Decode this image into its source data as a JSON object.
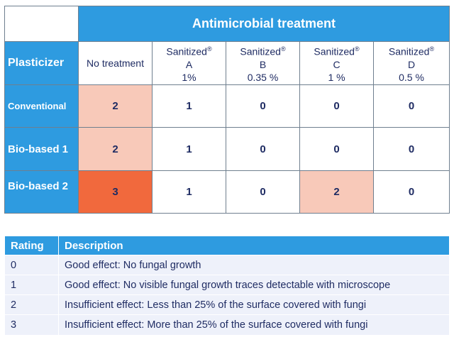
{
  "matrix": {
    "header_group": "Antimicrobial treatment",
    "row_header_title": "Plasticizer",
    "columns": [
      {
        "l1": "No treatment",
        "l2": "",
        "l3": "",
        "reg": ""
      },
      {
        "l1": "Sanitized",
        "reg": "®",
        "l2": "A",
        "l3": "1%"
      },
      {
        "l1": "Sanitized",
        "reg": "®",
        "l2": "B",
        "l3": "0.35 %"
      },
      {
        "l1": "Sanitized",
        "reg": "®",
        "l2": "C",
        "l3": "1 %"
      },
      {
        "l1": "Sanitized",
        "reg": "®",
        "l2": "D",
        "l3": "0.5 %"
      }
    ],
    "rows": [
      {
        "label": "Conventional",
        "values": [
          "2",
          "1",
          "0",
          "0",
          "0"
        ]
      },
      {
        "label": "Bio-based 1",
        "values": [
          "2",
          "1",
          "0",
          "0",
          "0"
        ]
      },
      {
        "label": "Bio-based 2",
        "values": [
          "3",
          "1",
          "0",
          "2",
          "0"
        ]
      }
    ],
    "highlight_colors": {
      "rating_2": "#f8c9b9",
      "rating_3": "#f1693d"
    },
    "header_color": "#2e9be0"
  },
  "legend": {
    "headers": [
      "Rating",
      "Description"
    ],
    "rows": [
      {
        "rating": "0",
        "description": "Good effect: No fungal growth"
      },
      {
        "rating": "1",
        "description": "Good effect: No visible fungal growth traces detectable with microscope"
      },
      {
        "rating": "2",
        "description": "Insufficient effect: Less than 25% of the surface covered with fungi"
      },
      {
        "rating": "3",
        "description": "Insufficient effect: More than 25% of the surface covered with fungi"
      }
    ]
  }
}
